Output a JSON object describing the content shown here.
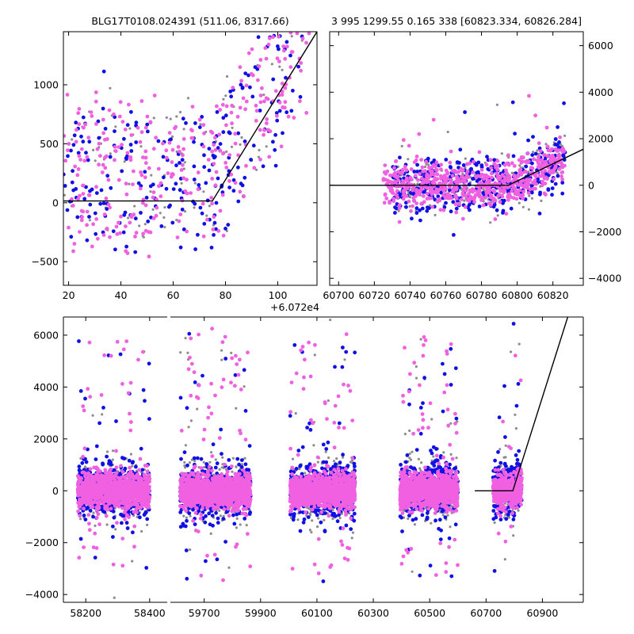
{
  "colors": {
    "grey": "#8c8c8c",
    "blue": "#1010e6",
    "pink": "#f060e0",
    "model_line": "#000000"
  },
  "chart_data": [
    {
      "type": "scatter",
      "panel": "top-left",
      "title": "BLG17T0108.024391 (511.06, 8317.66)",
      "x_offset_label": "+6.072e4",
      "xlim": [
        18,
        115
      ],
      "ylim": [
        -700,
        1450
      ],
      "xticks": [
        20,
        40,
        60,
        80,
        100
      ],
      "yticks": [
        -500,
        0,
        500,
        1000
      ],
      "grid": false,
      "model_x": [
        18,
        75,
        115
      ],
      "model_y": [
        15,
        15,
        1450
      ],
      "series": [
        {
          "color": "grey",
          "count": 90,
          "x_range": [
            18,
            112
          ],
          "y_band": [
            -650,
            1400
          ]
        },
        {
          "color": "blue",
          "count": 240,
          "x_range": [
            18,
            112
          ],
          "y_band": [
            -650,
            1350
          ]
        },
        {
          "color": "pink",
          "count": 330,
          "x_range": [
            18,
            112
          ],
          "y_band": [
            -650,
            1450
          ]
        }
      ]
    },
    {
      "type": "scatter",
      "panel": "top-right",
      "title": "3 995 1299.55 0.165 338 [60823.334, 60826.284]",
      "xlim": [
        60695,
        60837
      ],
      "ylim": [
        -4300,
        6600
      ],
      "xticks": [
        60700,
        60720,
        60740,
        60760,
        60780,
        60800,
        60820
      ],
      "yticks": [
        -4000,
        -2000,
        0,
        2000,
        4000,
        6000
      ],
      "y_axis_side": "right",
      "grid": false,
      "model_x": [
        60695,
        60795,
        60837
      ],
      "model_y": [
        0,
        0,
        1550
      ],
      "series": [
        {
          "color": "grey",
          "count": 220,
          "x_range": [
            60730,
            60827
          ],
          "y_band": [
            -1500,
            1500
          ]
        },
        {
          "color": "blue",
          "count": 420,
          "x_range": [
            60730,
            60827
          ],
          "y_band": [
            -1500,
            1600
          ]
        },
        {
          "color": "pink",
          "count": 600,
          "x_range": [
            60725,
            60827
          ],
          "y_band": [
            -800,
            1700
          ]
        }
      ]
    },
    {
      "type": "scatter",
      "panel": "bottom",
      "title": "",
      "ylim": [
        -4300,
        6700
      ],
      "yticks": [
        -4000,
        -2000,
        0,
        2000,
        4000,
        6000
      ],
      "grid": false,
      "segments": [
        {
          "xlim": [
            58130,
            58455
          ],
          "xticks": [
            58200,
            58400
          ],
          "data_x": [
            58175,
            58400
          ]
        },
        {
          "xlim": [
            59580,
            61045
          ],
          "xticks": [
            59700,
            59900,
            60100,
            60300,
            60500,
            60700,
            60900
          ],
          "season_ranges": [
            [
              59615,
              59865
            ],
            [
              60005,
              60235
            ],
            [
              60395,
              60600
            ],
            [
              60725,
              60827
            ]
          ]
        }
      ],
      "model_x": [
        60660,
        60795,
        60990
      ],
      "model_y": [
        0,
        0,
        6700
      ],
      "series": [
        {
          "color": "grey",
          "count_per_season": 300,
          "y_band": [
            -1400,
            1400
          ]
        },
        {
          "color": "blue",
          "count_per_season": 500,
          "y_band": [
            -1300,
            1300
          ]
        },
        {
          "color": "pink",
          "count_per_season": 1100,
          "y_band": [
            -800,
            800
          ]
        }
      ]
    }
  ]
}
